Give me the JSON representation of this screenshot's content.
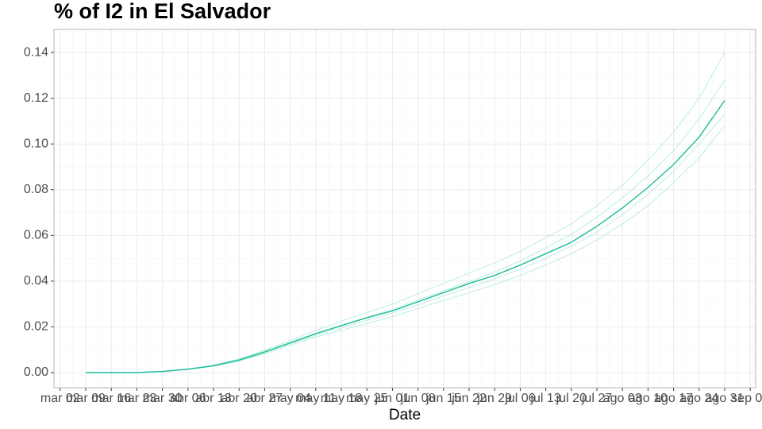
{
  "chart_data": {
    "type": "line",
    "title": "% of I2 in  El Salvador",
    "x_label": "Date",
    "xticks": [
      "mar 02",
      "mar 09",
      "mar 16",
      "mar 23",
      "mar 30",
      "abr 06",
      "abr 13",
      "abr 20",
      "abr 27",
      "may 04",
      "may 11",
      "may 18",
      "may 25",
      "jun 01",
      "jun 08",
      "jun 15",
      "jun 22",
      "jun 29",
      "jul 06",
      "jul 13",
      "jul 20",
      "jul 27",
      "ago 03",
      "ago 10",
      "ago 17",
      "ago 24",
      "ago 31",
      "sep 07"
    ],
    "x": [
      "mar 09",
      "mar 16",
      "mar 23",
      "mar 30",
      "abr 06",
      "abr 13",
      "abr 20",
      "abr 27",
      "may 04",
      "may 11",
      "may 18",
      "may 25",
      "jun 01",
      "jun 08",
      "jun 15",
      "jun 22",
      "jun 29",
      "jul 06",
      "jul 13",
      "jul 20",
      "jul 27",
      "ago 03",
      "ago 10",
      "ago 17",
      "ago 24",
      "ago 31"
    ],
    "series": [
      {
        "color": "#9ee8d2",
        "values": [
          0,
          0,
          0,
          0.0005,
          0.0016,
          0.0033,
          0.006,
          0.0098,
          0.014,
          0.0185,
          0.0225,
          0.0262,
          0.03,
          0.0345,
          0.039,
          0.0435,
          0.048,
          0.053,
          0.059,
          0.065,
          0.073,
          0.082,
          0.093,
          0.105,
          0.12,
          0.14
        ]
      },
      {
        "color": "#9ee8d2",
        "values": [
          0,
          0,
          0,
          0.0004,
          0.0014,
          0.0028,
          0.005,
          0.0082,
          0.012,
          0.0155,
          0.0185,
          0.0215,
          0.0245,
          0.028,
          0.0315,
          0.035,
          0.0385,
          0.0425,
          0.047,
          0.052,
          0.058,
          0.065,
          0.073,
          0.083,
          0.094,
          0.108
        ]
      },
      {
        "color": "#9ee8d2",
        "values": [
          0,
          0,
          0,
          0.0005,
          0.0015,
          0.0031,
          0.0057,
          0.0093,
          0.0133,
          0.0172,
          0.0208,
          0.0242,
          0.0277,
          0.0318,
          0.0358,
          0.0398,
          0.044,
          0.0488,
          0.0545,
          0.0605,
          0.068,
          0.0765,
          0.086,
          0.097,
          0.111,
          0.128
        ]
      },
      {
        "color": "#9ee8d2",
        "values": [
          0,
          0,
          0,
          0.0004,
          0.0014,
          0.0029,
          0.0053,
          0.0087,
          0.0126,
          0.0162,
          0.0195,
          0.0228,
          0.026,
          0.0297,
          0.0335,
          0.0372,
          0.041,
          0.0452,
          0.05,
          0.0553,
          0.0615,
          0.069,
          0.078,
          0.088,
          0.1,
          0.113
        ]
      },
      {
        "color": "#1abc9c",
        "values": [
          0,
          0,
          0,
          0.0005,
          0.0015,
          0.003,
          0.0055,
          0.009,
          0.013,
          0.017,
          0.0205,
          0.024,
          0.027,
          0.031,
          0.035,
          0.039,
          0.0425,
          0.047,
          0.052,
          0.057,
          0.064,
          0.072,
          0.081,
          0.091,
          0.103,
          0.119
        ]
      }
    ],
    "ylim": [
      -0.0066,
      0.1501
    ],
    "yticks": [
      {
        "value": 0,
        "label": "0.00"
      },
      0.02,
      0.04,
      0.06,
      0.08,
      {
        "value": 0.1,
        "label": "0.10"
      },
      0.12,
      0.14
    ],
    "grid": true
  }
}
